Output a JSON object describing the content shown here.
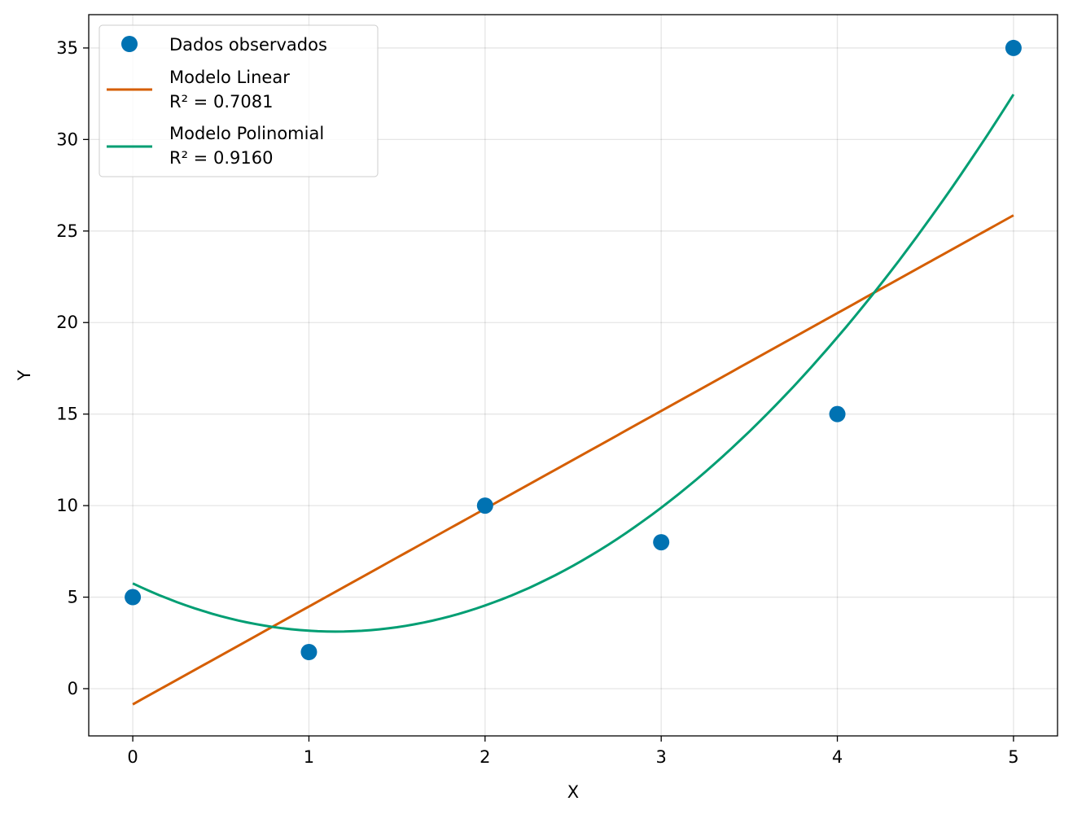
{
  "chart_data": {
    "type": "scatter",
    "title": "",
    "xlabel": "X",
    "ylabel": "Y",
    "xlim": [
      -0.25,
      5.25
    ],
    "ylim": [
      -2.58,
      36.82
    ],
    "xticks": [
      0,
      1,
      2,
      3,
      4,
      5
    ],
    "yticks": [
      0,
      5,
      10,
      15,
      20,
      25,
      30,
      35
    ],
    "grid": true,
    "legend_position": "top-left",
    "points": {
      "name": "Dados observados",
      "x": [
        0,
        1,
        2,
        3,
        4,
        5
      ],
      "y": [
        5,
        2,
        10,
        8,
        15,
        35
      ],
      "color": "#0072B2"
    },
    "lines": [
      {
        "name": "Modelo Linear",
        "r2_label": "R² = 0.7081",
        "type": "linear",
        "coef": [
          5.3429,
          -0.8571
        ],
        "x_range": [
          0,
          5
        ],
        "color": "#D55E00"
      },
      {
        "name": "Modelo Polinomial",
        "r2_label": "R² = 0.9160",
        "type": "quadratic",
        "coef": [
          1.9821,
          -4.5679,
          5.75
        ],
        "x_range": [
          0,
          5
        ],
        "color": "#009E73"
      }
    ]
  }
}
